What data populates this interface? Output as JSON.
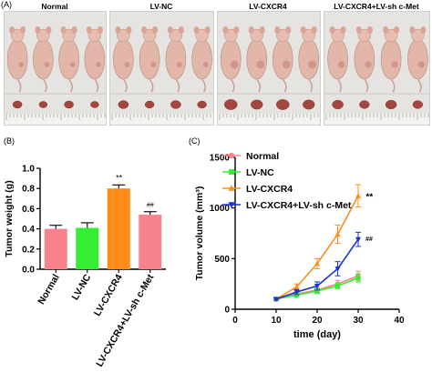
{
  "panel_a": {
    "label": "(A)",
    "groups": [
      "Normal",
      "LV-NC",
      "LV-CXCR4",
      "LV-CXCR4+LV-sh c-Met"
    ],
    "mice_per_group": 4,
    "tumors_per_group": 4
  },
  "panel_b": {
    "label": "(B)",
    "chart_data": {
      "type": "bar",
      "categories": [
        "Normal",
        "LV-NC",
        "LV-CXCR4",
        "LV-CXCR4+LV-sh c-Met"
      ],
      "values": [
        0.4,
        0.41,
        0.8,
        0.54
      ],
      "errors": [
        0.035,
        0.05,
        0.035,
        0.03
      ],
      "colors": [
        "#f7838c",
        "#33ee33",
        "#ff8c1a",
        "#f7838c"
      ],
      "annotations": [
        "",
        "",
        "**",
        "##"
      ],
      "ylabel": "Tumor weight (g)",
      "ylim": [
        0,
        1.0
      ],
      "yticks": [
        "0.0",
        "0.2",
        "0.4",
        "0.6",
        "0.8",
        "1.0"
      ]
    }
  },
  "panel_c": {
    "label": "(C)",
    "chart_data": {
      "type": "line",
      "x": [
        10,
        15,
        20,
        25,
        30
      ],
      "series": [
        {
          "name": "Normal",
          "values": [
            100,
            150,
            190,
            250,
            330
          ],
          "errors": [
            10,
            20,
            25,
            35,
            45
          ],
          "color": "#f7838c",
          "marker": "circle"
        },
        {
          "name": "LV-NC",
          "values": [
            100,
            140,
            180,
            230,
            310
          ],
          "errors": [
            10,
            20,
            25,
            30,
            40
          ],
          "color": "#33ee33",
          "marker": "square"
        },
        {
          "name": "LV-CXCR4",
          "values": [
            100,
            220,
            450,
            740,
            1120
          ],
          "errors": [
            10,
            30,
            50,
            90,
            110
          ],
          "color": "#ff8c1a",
          "marker": "triangle-up"
        },
        {
          "name": "LV-CXCR4+LV-sh c-Met",
          "values": [
            100,
            170,
            230,
            400,
            690
          ],
          "errors": [
            10,
            25,
            40,
            70,
            70
          ],
          "color": "#1a33cc",
          "marker": "triangle-down"
        }
      ],
      "annotations": [
        {
          "text": "**",
          "x": 30,
          "y": 1120
        },
        {
          "text": "##",
          "x": 30,
          "y": 690
        }
      ],
      "xlabel": "time (day)",
      "ylabel": "Tumor volume (mm³)",
      "xlim": [
        0,
        40
      ],
      "ylim": [
        0,
        1500
      ],
      "xticks": [
        "0",
        "10",
        "20",
        "30",
        "40"
      ],
      "yticks": [
        "0",
        "500",
        "1000",
        "1500"
      ],
      "legend": "top-left"
    }
  }
}
